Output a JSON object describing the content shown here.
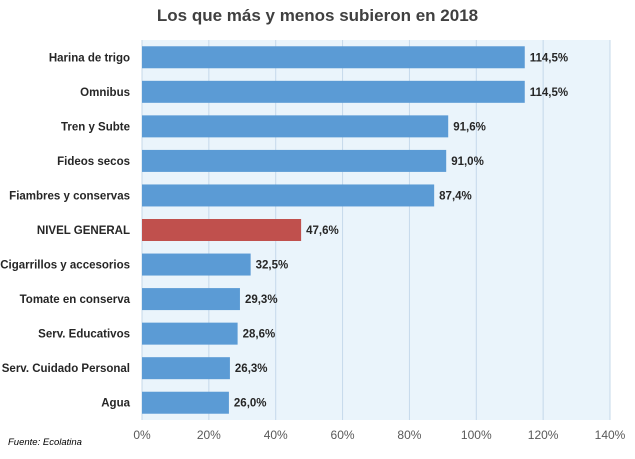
{
  "chart_data": {
    "type": "bar",
    "orientation": "horizontal",
    "title": "Los que más y menos subieron en 2018",
    "categories": [
      "Harina de trigo",
      "Omnibus",
      "Tren y Subte",
      "Fideos secos",
      "Fiambres y conservas",
      "NIVEL GENERAL",
      "Cigarrillos y accesorios",
      "Tomate en conserva",
      "Serv. Educativos",
      "Serv. Cuidado Personal",
      "Agua"
    ],
    "values": [
      114.5,
      114.5,
      91.6,
      91.0,
      87.4,
      47.6,
      32.5,
      29.3,
      28.6,
      26.3,
      26.0
    ],
    "value_labels": [
      "114,5%",
      "114,5%",
      "91,6%",
      "91,0%",
      "87,4%",
      "47,6%",
      "32,5%",
      "29,3%",
      "28,6%",
      "26,3%",
      "26,0%"
    ],
    "highlight_category": "NIVEL GENERAL",
    "xlim": [
      0,
      140
    ],
    "xticks": [
      0,
      20,
      40,
      60,
      80,
      100,
      120,
      140
    ],
    "xtick_labels": [
      "0%",
      "20%",
      "40%",
      "60%",
      "80%",
      "100%",
      "120%",
      "140%"
    ],
    "grid": "vertical",
    "colors": {
      "bar": "#5b9bd5",
      "highlight": "#c0504d",
      "plot_background": "#eaf4fb",
      "grid": "#c5d9ea"
    }
  },
  "source": "Fuente: Ecolatina"
}
